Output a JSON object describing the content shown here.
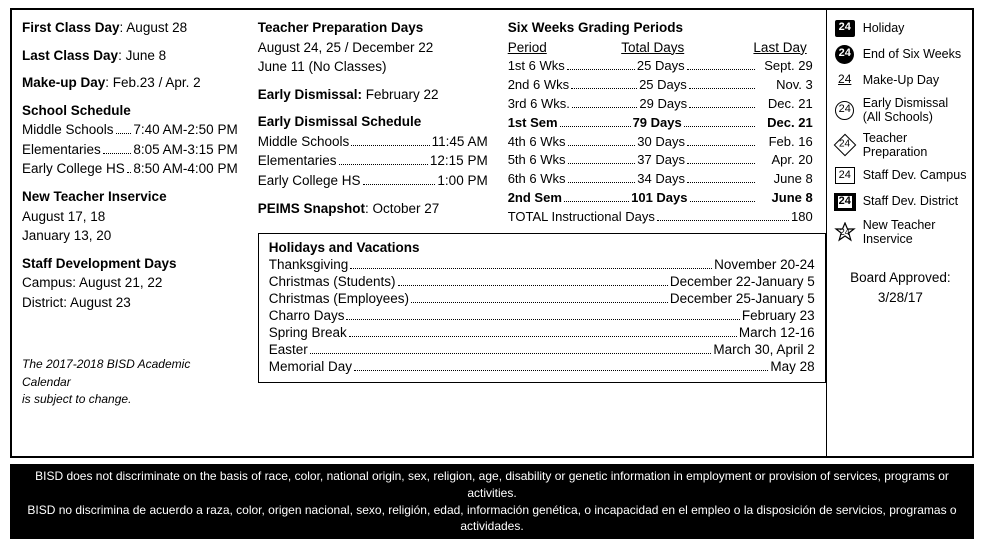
{
  "col1": {
    "firstClassLabel": "First Class Day",
    "firstClassValue": ": August 28",
    "lastClassLabel": "Last Class Day",
    "lastClassValue": ": June 8",
    "makeupLabel": "Make-up Day",
    "makeupValue": ":  Feb.23 / Apr. 2",
    "schoolScheduleTitle": "School Schedule",
    "schedule": [
      {
        "l": "Middle Schools",
        "r": "7:40 AM-2:50 PM"
      },
      {
        "l": "Elementaries",
        "r": "8:05 AM-3:15 PM"
      },
      {
        "l": "Early College HS",
        "r": "8:50 AM-4:00 PM"
      }
    ],
    "newTeacherTitle": "New Teacher Inservice",
    "newTeacherLine1": "August 17, 18",
    "newTeacherLine2": "January 13, 20",
    "staffDevTitle": "Staff Development Days",
    "staffDevLine1": "Campus: August 21, 22",
    "staffDevLine2": "District: August 23",
    "footnote1": "The 2017-2018 BISD Academic Calendar",
    "footnote2": "is subject to change."
  },
  "col2": {
    "teacherPrepTitle": "Teacher Preparation Days",
    "teacherPrepLine1": "August 24, 25 / December 22",
    "teacherPrepLine2": "June 11 (No Classes)",
    "earlyDismissalLabel": "Early Dismissal:",
    "earlyDismissalValue": " February 22",
    "earlyDismissalSchedTitle": "Early Dismissal Schedule",
    "edSchedule": [
      {
        "l": "Middle Schools",
        "r": "11:45 AM"
      },
      {
        "l": "Elementaries",
        "r": "12:15 PM"
      },
      {
        "l": "Early College HS",
        "r": "1:00 PM"
      }
    ],
    "peimsLabel": "PEIMS Snapshot",
    "peimsValue": ": October 27"
  },
  "col3": {
    "gradingTitle": "Six Weeks Grading Periods",
    "headPeriod": "Period",
    "headTotal": "Total Days",
    "headLast": "Last Day",
    "rows": [
      {
        "p": "1st 6 Wks",
        "d": "25 Days",
        "l": "Sept. 29",
        "b": false
      },
      {
        "p": "2nd 6 Wks",
        "d": "25 Days",
        "l": "Nov. 3",
        "b": false
      },
      {
        "p": "3rd 6 Wks.",
        "d": "29 Days",
        "l": "Dec. 21",
        "b": false
      },
      {
        "p": "1st Sem",
        "d": "79 Days",
        "l": "Dec. 21",
        "b": true
      },
      {
        "p": "4th 6 Wks",
        "d": "30 Days",
        "l": "Feb. 16",
        "b": false
      },
      {
        "p": "5th 6 Wks",
        "d": "37 Days",
        "l": "Apr. 20",
        "b": false
      },
      {
        "p": "6th 6 Wks",
        "d": "34 Days",
        "l": "June 8",
        "b": false
      },
      {
        "p": "2nd Sem",
        "d": "101 Days",
        "l": "June 8",
        "b": true
      }
    ],
    "totalRow": {
      "l": "TOTAL Instructional Days",
      "r": "180"
    }
  },
  "holidays": {
    "title": "Holidays and Vacations",
    "rows": [
      {
        "l": "Thanksgiving",
        "r": "November 20-24"
      },
      {
        "l": "Christmas (Students)",
        "r": "December 22-January 5"
      },
      {
        "l": "Christmas (Employees)",
        "r": "December 25-January 5"
      },
      {
        "l": "Charro Days",
        "r": "February 23"
      },
      {
        "l": "Spring Break",
        "r": "March 12-16"
      },
      {
        "l": "Easter",
        "r": "March 30, April 2"
      },
      {
        "l": "Memorial Day",
        "r": "May 28"
      }
    ]
  },
  "legend": {
    "num": "24",
    "items": [
      {
        "icon": "sq-filled",
        "text": "Holiday"
      },
      {
        "icon": "circle-filled",
        "text": "End of Six Weeks"
      },
      {
        "icon": "underline",
        "text": "Make-Up Day"
      },
      {
        "icon": "circle-outline",
        "text": "Early Dismissal (All Schools)"
      },
      {
        "icon": "diamond",
        "text": "Teacher Preparation"
      },
      {
        "icon": "sq-outline",
        "text": "Staff Dev. Campus"
      },
      {
        "icon": "sq-inverse",
        "text": "Staff Dev. District"
      },
      {
        "icon": "star",
        "text": "New Teacher Inservice"
      }
    ],
    "boardLabel": "Board Approved:",
    "boardDate": "3/28/17"
  },
  "disclaimer": {
    "en": "BISD does not discriminate on the basis of race, color, national origin, sex, religion, age, disability or genetic information in employment or provision of services, programs or activities.",
    "es": "BISD no discrimina de acuerdo a raza, color, origen nacional, sexo, religión, edad, información genética, o incapacidad en el empleo o la disposición de servicios, programas o actividades."
  }
}
